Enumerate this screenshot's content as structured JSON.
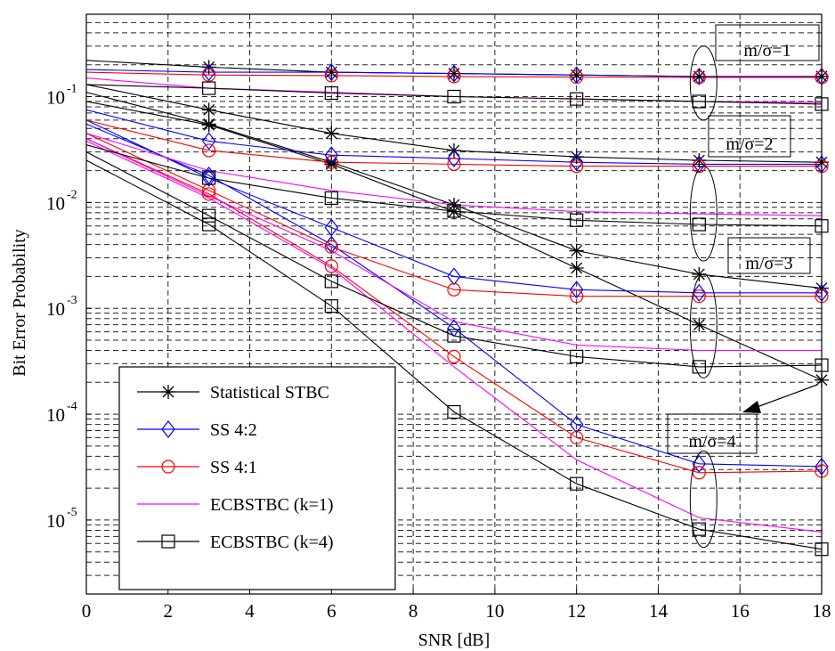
{
  "chart_data": {
    "type": "line",
    "xlabel": "SNR [dB]",
    "ylabel": "Bit Error Probability",
    "xlim": [
      0,
      18
    ],
    "ylim": [
      2e-06,
      0.6
    ],
    "yscale": "log",
    "grid": true,
    "x_ticks": [
      "0",
      "2",
      "4",
      "6",
      "8",
      "10",
      "12",
      "14",
      "16",
      "18"
    ],
    "y_ticks": [
      {
        "value": 0.1,
        "base": "10",
        "exp": "-1"
      },
      {
        "value": 0.01,
        "base": "10",
        "exp": "-2"
      },
      {
        "value": 0.001,
        "base": "10",
        "exp": "-3"
      },
      {
        "value": 0.0001,
        "base": "10",
        "exp": "-4"
      },
      {
        "value": 1e-05,
        "base": "10",
        "exp": "-5"
      }
    ],
    "legend_position": "bottom-left",
    "series": [
      {
        "name": "Statistical STBC",
        "color": "#000000",
        "marker": "star",
        "x": [
          0,
          3,
          6,
          9,
          12,
          15,
          18
        ],
        "y": [
          0.22,
          0.19,
          0.17,
          0.165,
          0.16,
          0.155,
          0.155
        ]
      },
      {
        "name": "Statistical STBC",
        "color": "#000000",
        "marker": "star",
        "x": [
          0,
          3,
          6,
          9,
          12,
          15,
          18
        ],
        "y": [
          0.13,
          0.075,
          0.045,
          0.031,
          0.027,
          0.025,
          0.024
        ]
      },
      {
        "name": "Statistical STBC",
        "color": "#000000",
        "marker": "star",
        "x": [
          0,
          3,
          6,
          9,
          12,
          15,
          18
        ],
        "y": [
          0.11,
          0.055,
          0.024,
          0.0095,
          0.0035,
          0.0021,
          0.00155
        ]
      },
      {
        "name": "Statistical STBC",
        "color": "#000000",
        "marker": "star",
        "x": [
          0,
          3,
          6,
          9,
          12,
          15,
          18
        ],
        "y": [
          0.09,
          0.054,
          0.023,
          0.0082,
          0.0024,
          0.0007,
          0.00021
        ]
      },
      {
        "name": "SS 4:2",
        "color": "#0000ff",
        "marker": "diamond",
        "x": [
          0,
          3,
          6,
          9,
          12,
          15,
          18
        ],
        "y": [
          0.18,
          0.17,
          0.17,
          0.165,
          0.16,
          0.155,
          0.155
        ]
      },
      {
        "name": "SS 4:2",
        "color": "#0000ff",
        "marker": "diamond",
        "x": [
          0,
          3,
          6,
          9,
          12,
          15,
          18
        ],
        "y": [
          0.075,
          0.038,
          0.028,
          0.026,
          0.024,
          0.023,
          0.023
        ]
      },
      {
        "name": "SS 4:2",
        "color": "#0000ff",
        "marker": "diamond",
        "x": [
          0,
          3,
          6,
          9,
          12,
          15,
          18
        ],
        "y": [
          0.06,
          0.017,
          0.0058,
          0.002,
          0.0015,
          0.0014,
          0.0014
        ]
      },
      {
        "name": "SS 4:2",
        "color": "#0000ff",
        "marker": "diamond",
        "x": [
          0,
          3,
          6,
          9,
          12,
          15,
          18
        ],
        "y": [
          0.055,
          0.018,
          0.004,
          0.00065,
          8e-05,
          3.4e-05,
          3.2e-05
        ]
      },
      {
        "name": "SS 4:1",
        "color": "#ff0000",
        "marker": "circle",
        "x": [
          0,
          3,
          6,
          9,
          12,
          15,
          18
        ],
        "y": [
          0.17,
          0.16,
          0.158,
          0.155,
          0.153,
          0.152,
          0.152
        ]
      },
      {
        "name": "SS 4:1",
        "color": "#ff0000",
        "marker": "circle",
        "x": [
          0,
          3,
          6,
          9,
          12,
          15,
          18
        ],
        "y": [
          0.06,
          0.031,
          0.024,
          0.023,
          0.022,
          0.022,
          0.022
        ]
      },
      {
        "name": "SS 4:1",
        "color": "#ff0000",
        "marker": "circle",
        "x": [
          0,
          3,
          6,
          9,
          12,
          15,
          18
        ],
        "y": [
          0.045,
          0.013,
          0.0038,
          0.0015,
          0.0013,
          0.0013,
          0.0013
        ]
      },
      {
        "name": "SS 4:1",
        "color": "#ff0000",
        "marker": "circle",
        "x": [
          0,
          3,
          6,
          9,
          12,
          15,
          18
        ],
        "y": [
          0.04,
          0.012,
          0.0025,
          0.00035,
          6e-05,
          2.8e-05,
          2.9e-05
        ]
      },
      {
        "name": "ECBSTBC (k=1)",
        "color": "#ff00ff",
        "marker": "none",
        "x": [
          0,
          3,
          6,
          9,
          12,
          15,
          18
        ],
        "y": [
          0.15,
          0.12,
          0.11,
          0.1,
          0.095,
          0.09,
          0.088
        ]
      },
      {
        "name": "ECBSTBC (k=1)",
        "color": "#ff00ff",
        "marker": "none",
        "x": [
          0,
          3,
          6,
          9,
          12,
          15,
          18
        ],
        "y": [
          0.045,
          0.02,
          0.013,
          0.0095,
          0.0082,
          0.0078,
          0.0075
        ]
      },
      {
        "name": "ECBSTBC (k=1)",
        "color": "#ff00ff",
        "marker": "none",
        "x": [
          0,
          3,
          6,
          9,
          12,
          15,
          18
        ],
        "y": [
          0.04,
          0.0115,
          0.0035,
          0.00075,
          0.00045,
          0.0004,
          0.0004
        ]
      },
      {
        "name": "ECBSTBC (k=1)",
        "color": "#ff00ff",
        "marker": "none",
        "x": [
          0,
          3,
          6,
          9,
          12,
          15,
          18
        ],
        "y": [
          0.038,
          0.011,
          0.0024,
          0.00028,
          3.7e-05,
          1.05e-05,
          7.7e-06
        ]
      },
      {
        "name": "ECBSTBC (k=4)",
        "color": "#000000",
        "marker": "square",
        "x": [
          0,
          3,
          6,
          9,
          12,
          15,
          18
        ],
        "y": [
          0.13,
          0.12,
          0.108,
          0.1,
          0.095,
          0.09,
          0.085
        ]
      },
      {
        "name": "ECBSTBC (k=4)",
        "color": "#000000",
        "marker": "square",
        "x": [
          0,
          3,
          6,
          9,
          12,
          15,
          18
        ],
        "y": [
          0.035,
          0.017,
          0.011,
          0.0083,
          0.0068,
          0.0062,
          0.006
        ]
      },
      {
        "name": "ECBSTBC (k=4)",
        "color": "#000000",
        "marker": "square",
        "x": [
          0,
          3,
          6,
          9,
          12,
          15,
          18
        ],
        "y": [
          0.03,
          0.0075,
          0.0018,
          0.00055,
          0.00035,
          0.00028,
          0.00029
        ]
      },
      {
        "name": "ECBSTBC (k=4)",
        "color": "#000000",
        "marker": "square",
        "x": [
          0,
          3,
          6,
          9,
          12,
          15,
          18
        ],
        "y": [
          0.025,
          0.0062,
          0.00105,
          0.000105,
          2.2e-05,
          8.2e-06,
          5.3e-06
        ]
      }
    ],
    "legend": [
      {
        "label": "Statistical STBC",
        "color": "#000000",
        "marker": "star"
      },
      {
        "label": "SS 4:2",
        "color": "#0000ff",
        "marker": "diamond"
      },
      {
        "label": "SS 4:1",
        "color": "#ff0000",
        "marker": "circle"
      },
      {
        "label": "ECBSTBC (k=1)",
        "color": "#ff00ff",
        "marker": "none"
      },
      {
        "label": "ECBSTBC (k=4)",
        "color": "#000000",
        "marker": "square"
      }
    ],
    "annotations": [
      {
        "text": "m/σ=1",
        "cx": 15,
        "cy": 0.13
      },
      {
        "text": "m/σ=2",
        "cx": 15,
        "cy": 0.008
      },
      {
        "text": "m/σ=3",
        "cx": 15,
        "cy": 0.00065
      },
      {
        "text": "m/σ=4",
        "cx": 15,
        "cy": 1.5e-05
      }
    ]
  }
}
